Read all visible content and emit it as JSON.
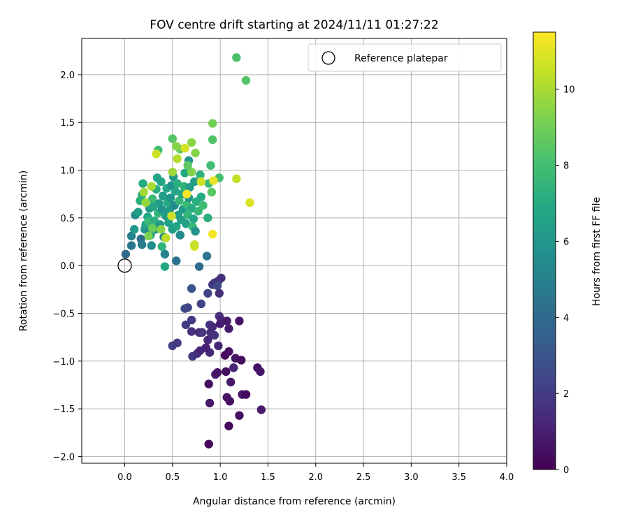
{
  "chart_data": {
    "type": "scatter",
    "title": "FOV centre drift starting at 2024/11/11 01:27:22",
    "xlabel": "Angular distance from reference (arcmin)",
    "ylabel": "Rotation from reference (arcmin)",
    "xlim": [
      -0.45,
      4.0
    ],
    "ylim": [
      -2.07,
      2.38
    ],
    "xticks": [
      0.0,
      0.5,
      1.0,
      1.5,
      2.0,
      2.5,
      3.0,
      3.5,
      4.0
    ],
    "xtick_labels": [
      "0.0",
      "0.5",
      "1.0",
      "1.5",
      "2.0",
      "2.5",
      "3.0",
      "3.5",
      "4.0"
    ],
    "yticks": [
      -2.0,
      -1.5,
      -1.0,
      -0.5,
      0.0,
      0.5,
      1.0,
      1.5,
      2.0
    ],
    "ytick_labels": [
      "−2.0",
      "−1.5",
      "−1.0",
      "−0.5",
      "0.0",
      "0.5",
      "1.0",
      "1.5",
      "2.0"
    ],
    "grid": true,
    "colormap": "viridis",
    "colorbar": {
      "label": "Hours from first FF file",
      "range": [
        0,
        11.5
      ],
      "ticks": [
        0,
        2,
        4,
        6,
        8,
        10
      ],
      "tick_labels": [
        "0",
        "2",
        "4",
        "6",
        "8",
        "10"
      ]
    },
    "legend": {
      "position": "top-right",
      "entries": [
        "Reference platepar"
      ]
    },
    "reference_point": {
      "x": 0.0,
      "y": 0.0
    },
    "points": [
      {
        "x": 0.88,
        "y": -1.87,
        "t": 0.2
      },
      {
        "x": 1.09,
        "y": -1.68,
        "t": 0.3
      },
      {
        "x": 1.2,
        "y": -1.57,
        "t": 0.5
      },
      {
        "x": 0.89,
        "y": -1.44,
        "t": 0.8
      },
      {
        "x": 1.1,
        "y": -1.42,
        "t": 0.4
      },
      {
        "x": 1.07,
        "y": -1.38,
        "t": 0.6
      },
      {
        "x": 1.23,
        "y": -1.35,
        "t": 0.7
      },
      {
        "x": 1.27,
        "y": -1.35,
        "t": 0.3
      },
      {
        "x": 1.43,
        "y": -1.51,
        "t": 0.9
      },
      {
        "x": 0.88,
        "y": -1.24,
        "t": 0.5
      },
      {
        "x": 1.11,
        "y": -1.22,
        "t": 0.8
      },
      {
        "x": 0.95,
        "y": -1.14,
        "t": 1.0
      },
      {
        "x": 0.97,
        "y": -1.12,
        "t": 0.6
      },
      {
        "x": 1.06,
        "y": -1.11,
        "t": 0.4
      },
      {
        "x": 1.14,
        "y": -1.07,
        "t": 1.2
      },
      {
        "x": 1.39,
        "y": -1.07,
        "t": 0.5
      },
      {
        "x": 1.42,
        "y": -1.11,
        "t": 0.7
      },
      {
        "x": 1.05,
        "y": -0.94,
        "t": 0.3
      },
      {
        "x": 1.09,
        "y": -0.9,
        "t": 0.5
      },
      {
        "x": 1.16,
        "y": -0.97,
        "t": 0.6
      },
      {
        "x": 1.22,
        "y": -0.99,
        "t": 0.4
      },
      {
        "x": 0.71,
        "y": -0.95,
        "t": 1.9
      },
      {
        "x": 0.76,
        "y": -0.92,
        "t": 1.5
      },
      {
        "x": 0.79,
        "y": -0.89,
        "t": 1.2
      },
      {
        "x": 0.89,
        "y": -0.91,
        "t": 1.4
      },
      {
        "x": 0.98,
        "y": -0.84,
        "t": 1.3
      },
      {
        "x": 0.5,
        "y": -0.84,
        "t": 2.2
      },
      {
        "x": 0.55,
        "y": -0.81,
        "t": 2.0
      },
      {
        "x": 0.7,
        "y": -0.69,
        "t": 1.6
      },
      {
        "x": 0.78,
        "y": -0.7,
        "t": 1.4
      },
      {
        "x": 0.81,
        "y": -0.7,
        "t": 1.8
      },
      {
        "x": 0.87,
        "y": -0.78,
        "t": 1.3
      },
      {
        "x": 0.85,
        "y": -0.86,
        "t": 1.1
      },
      {
        "x": 0.9,
        "y": -0.7,
        "t": 1.5
      },
      {
        "x": 0.94,
        "y": -0.73,
        "t": 1.7
      },
      {
        "x": 0.89,
        "y": -0.62,
        "t": 1.9
      },
      {
        "x": 0.92,
        "y": -0.64,
        "t": 1.4
      },
      {
        "x": 0.99,
        "y": -0.53,
        "t": 1.6
      },
      {
        "x": 1.01,
        "y": -0.57,
        "t": 1.2
      },
      {
        "x": 1.0,
        "y": -0.61,
        "t": 1.0
      },
      {
        "x": 1.07,
        "y": -0.58,
        "t": 0.9
      },
      {
        "x": 1.09,
        "y": -0.66,
        "t": 0.8
      },
      {
        "x": 1.2,
        "y": -0.58,
        "t": 0.6
      },
      {
        "x": 0.64,
        "y": -0.62,
        "t": 2.1
      },
      {
        "x": 0.7,
        "y": -0.57,
        "t": 2.0
      },
      {
        "x": 0.63,
        "y": -0.45,
        "t": 2.6
      },
      {
        "x": 0.66,
        "y": -0.44,
        "t": 2.4
      },
      {
        "x": 0.8,
        "y": -0.4,
        "t": 2.3
      },
      {
        "x": 0.7,
        "y": -0.24,
        "t": 3.0
      },
      {
        "x": 0.87,
        "y": -0.29,
        "t": 2.2
      },
      {
        "x": 0.92,
        "y": -0.2,
        "t": 2.0
      },
      {
        "x": 0.94,
        "y": -0.18,
        "t": 1.8
      },
      {
        "x": 0.98,
        "y": -0.16,
        "t": 1.7
      },
      {
        "x": 1.01,
        "y": -0.13,
        "t": 1.6
      },
      {
        "x": 0.99,
        "y": -0.29,
        "t": 1.5
      },
      {
        "x": 0.97,
        "y": -0.21,
        "t": 2.5
      },
      {
        "x": 0.01,
        "y": 0.12,
        "t": 4.0
      },
      {
        "x": 0.07,
        "y": 0.21,
        "t": 4.5
      },
      {
        "x": 0.07,
        "y": 0.31,
        "t": 5.0
      },
      {
        "x": 0.1,
        "y": 0.38,
        "t": 6.0
      },
      {
        "x": 0.11,
        "y": 0.53,
        "t": 5.5
      },
      {
        "x": 0.14,
        "y": 0.56,
        "t": 6.5
      },
      {
        "x": 0.16,
        "y": 0.68,
        "t": 7.2
      },
      {
        "x": 0.18,
        "y": 0.74,
        "t": 7.4
      },
      {
        "x": 0.19,
        "y": 0.86,
        "t": 7.0
      },
      {
        "x": 0.17,
        "y": 0.28,
        "t": 4.2
      },
      {
        "x": 0.18,
        "y": 0.22,
        "t": 4.8
      },
      {
        "x": 0.21,
        "y": 0.38,
        "t": 5.8
      },
      {
        "x": 0.22,
        "y": 0.43,
        "t": 6.6
      },
      {
        "x": 0.24,
        "y": 0.51,
        "t": 6.9
      },
      {
        "x": 0.25,
        "y": 0.46,
        "t": 7.7
      },
      {
        "x": 0.26,
        "y": 0.6,
        "t": 6.3
      },
      {
        "x": 0.27,
        "y": 0.32,
        "t": 6.2
      },
      {
        "x": 0.28,
        "y": 0.21,
        "t": 5.6
      },
      {
        "x": 0.29,
        "y": 0.7,
        "t": 7.8
      },
      {
        "x": 0.3,
        "y": 0.62,
        "t": 6.7
      },
      {
        "x": 0.31,
        "y": 0.47,
        "t": 7.3
      },
      {
        "x": 0.32,
        "y": 0.38,
        "t": 6.0
      },
      {
        "x": 0.33,
        "y": 0.8,
        "t": 7.1
      },
      {
        "x": 0.34,
        "y": 0.92,
        "t": 6.8
      },
      {
        "x": 0.35,
        "y": 0.55,
        "t": 7.5
      },
      {
        "x": 0.36,
        "y": 0.65,
        "t": 6.4
      },
      {
        "x": 0.37,
        "y": 0.43,
        "t": 6.1
      },
      {
        "x": 0.38,
        "y": 0.88,
        "t": 6.7
      },
      {
        "x": 0.39,
        "y": 0.59,
        "t": 5.9
      },
      {
        "x": 0.4,
        "y": 0.73,
        "t": 6.5
      },
      {
        "x": 0.41,
        "y": 0.3,
        "t": 5.3
      },
      {
        "x": 0.42,
        "y": 0.12,
        "t": 5.1
      },
      {
        "x": 0.43,
        "y": 0.52,
        "t": 6.3
      },
      {
        "x": 0.44,
        "y": 0.81,
        "t": 6.9
      },
      {
        "x": 0.45,
        "y": 0.66,
        "t": 7.0
      },
      {
        "x": 0.46,
        "y": 0.45,
        "t": 6.6
      },
      {
        "x": 0.47,
        "y": 0.58,
        "t": 6.2
      },
      {
        "x": 0.48,
        "y": 0.71,
        "t": 6.0
      },
      {
        "x": 0.49,
        "y": 0.84,
        "t": 5.7
      },
      {
        "x": 0.5,
        "y": 0.38,
        "t": 6.4
      },
      {
        "x": 0.51,
        "y": 0.93,
        "t": 6.1
      },
      {
        "x": 0.52,
        "y": 0.63,
        "t": 5.6
      },
      {
        "x": 0.53,
        "y": 0.78,
        "t": 6.7
      },
      {
        "x": 0.54,
        "y": 0.41,
        "t": 6.8
      },
      {
        "x": 0.55,
        "y": 0.86,
        "t": 7.2
      },
      {
        "x": 0.56,
        "y": 0.53,
        "t": 6.3
      },
      {
        "x": 0.57,
        "y": 0.68,
        "t": 7.6
      },
      {
        "x": 0.58,
        "y": 0.32,
        "t": 5.2
      },
      {
        "x": 0.59,
        "y": 0.48,
        "t": 6.5
      },
      {
        "x": 0.6,
        "y": 0.75,
        "t": 6.9
      },
      {
        "x": 0.61,
        "y": 0.59,
        "t": 6.2
      },
      {
        "x": 0.62,
        "y": 0.83,
        "t": 7.4
      },
      {
        "x": 0.63,
        "y": 0.97,
        "t": 7.0
      },
      {
        "x": 0.64,
        "y": 0.44,
        "t": 6.6
      },
      {
        "x": 0.65,
        "y": 0.64,
        "t": 7.8
      },
      {
        "x": 0.66,
        "y": 0.53,
        "t": 7.5
      },
      {
        "x": 0.67,
        "y": 0.71,
        "t": 6.0
      },
      {
        "x": 0.68,
        "y": 0.82,
        "t": 6.3
      },
      {
        "x": 0.7,
        "y": 0.6,
        "t": 7.1
      },
      {
        "x": 0.71,
        "y": 0.41,
        "t": 7.7
      },
      {
        "x": 0.72,
        "y": 0.49,
        "t": 6.8
      },
      {
        "x": 0.73,
        "y": 0.88,
        "t": 6.4
      },
      {
        "x": 0.74,
        "y": 0.36,
        "t": 5.8
      },
      {
        "x": 0.75,
        "y": 0.67,
        "t": 7.2
      },
      {
        "x": 0.77,
        "y": 0.57,
        "t": 7.6
      },
      {
        "x": 0.79,
        "y": 0.95,
        "t": 7.3
      },
      {
        "x": 0.8,
        "y": 0.72,
        "t": 7.0
      },
      {
        "x": 0.82,
        "y": 0.63,
        "t": 7.9
      },
      {
        "x": 0.87,
        "y": 0.5,
        "t": 7.3
      },
      {
        "x": 0.88,
        "y": 0.86,
        "t": 7.8
      },
      {
        "x": 0.9,
        "y": 1.05,
        "t": 7.9
      },
      {
        "x": 0.91,
        "y": 0.77,
        "t": 8.5
      },
      {
        "x": 0.92,
        "y": 1.32,
        "t": 8.3
      },
      {
        "x": 0.92,
        "y": 1.49,
        "t": 9.0
      },
      {
        "x": 0.99,
        "y": 0.92,
        "t": 8.1
      },
      {
        "x": 0.86,
        "y": 0.1,
        "t": 4.5
      },
      {
        "x": 0.78,
        "y": -0.01,
        "t": 4.1
      },
      {
        "x": 0.54,
        "y": 0.05,
        "t": 4.3
      },
      {
        "x": 0.42,
        "y": -0.01,
        "t": 6.9
      },
      {
        "x": 0.39,
        "y": 0.2,
        "t": 7.4
      },
      {
        "x": 0.58,
        "y": 0.32,
        "t": 5.4
      },
      {
        "x": 0.67,
        "y": 1.1,
        "t": 6.0
      },
      {
        "x": 0.7,
        "y": 0.98,
        "t": 9.3
      },
      {
        "x": 0.74,
        "y": 1.18,
        "t": 9.4
      },
      {
        "x": 0.7,
        "y": 1.29,
        "t": 9.5
      },
      {
        "x": 0.66,
        "y": 1.05,
        "t": 8.6
      },
      {
        "x": 0.58,
        "y": 1.22,
        "t": 8.7
      },
      {
        "x": 0.54,
        "y": 1.25,
        "t": 9.4
      },
      {
        "x": 0.5,
        "y": 1.33,
        "t": 8.4
      },
      {
        "x": 0.35,
        "y": 1.21,
        "t": 8.0
      },
      {
        "x": 0.33,
        "y": 1.17,
        "t": 10.6
      },
      {
        "x": 0.5,
        "y": 0.98,
        "t": 9.8
      },
      {
        "x": 0.55,
        "y": 1.12,
        "t": 10.2
      },
      {
        "x": 0.63,
        "y": 1.23,
        "t": 10.8
      },
      {
        "x": 0.65,
        "y": 0.75,
        "t": 11.4
      },
      {
        "x": 0.73,
        "y": 0.2,
        "t": 10.9
      },
      {
        "x": 0.73,
        "y": 0.22,
        "t": 10.5
      },
      {
        "x": 0.8,
        "y": 0.88,
        "t": 10.7
      },
      {
        "x": 0.93,
        "y": 0.89,
        "t": 11.1
      },
      {
        "x": 0.92,
        "y": 0.33,
        "t": 11.3
      },
      {
        "x": 1.17,
        "y": 0.91,
        "t": 10.4
      },
      {
        "x": 1.31,
        "y": 0.66,
        "t": 10.9
      },
      {
        "x": 0.49,
        "y": 0.52,
        "t": 10.6
      },
      {
        "x": 0.43,
        "y": 0.29,
        "t": 10.3
      },
      {
        "x": 0.28,
        "y": 0.83,
        "t": 10.0
      },
      {
        "x": 0.22,
        "y": 0.66,
        "t": 9.7
      },
      {
        "x": 0.2,
        "y": 0.77,
        "t": 9.9
      },
      {
        "x": 0.38,
        "y": 0.38,
        "t": 9.4
      },
      {
        "x": 0.29,
        "y": 0.39,
        "t": 8.9
      },
      {
        "x": 0.25,
        "y": 0.31,
        "t": 9.2
      },
      {
        "x": 1.17,
        "y": 2.18,
        "t": 8.2
      },
      {
        "x": 1.27,
        "y": 1.94,
        "t": 8.4
      }
    ]
  }
}
